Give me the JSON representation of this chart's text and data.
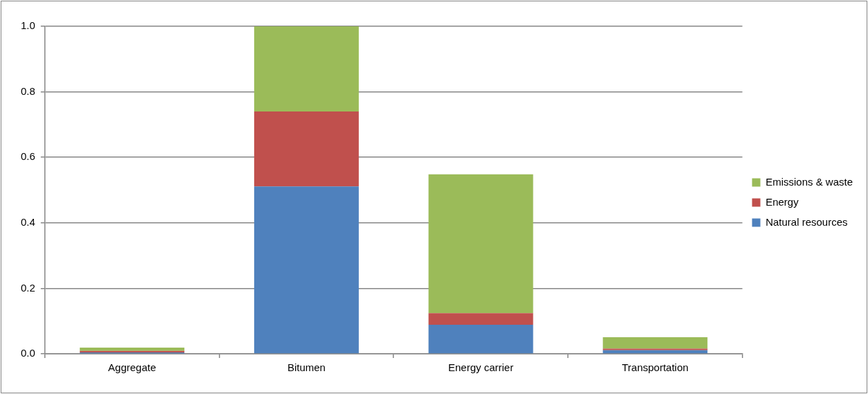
{
  "chart_data": {
    "type": "bar",
    "stacked": true,
    "categories": [
      "Aggregate",
      "Bitumen",
      "Energy carrier",
      "Transportation"
    ],
    "series": [
      {
        "name": "Natural resources",
        "color": "#4f81bd",
        "values": [
          0.004,
          0.511,
          0.089,
          0.011
        ]
      },
      {
        "name": "Energy",
        "color": "#c0504d",
        "values": [
          0.005,
          0.229,
          0.035,
          0.005
        ]
      },
      {
        "name": "Emissions & waste",
        "color": "#9bbb59",
        "values": [
          0.01,
          0.26,
          0.424,
          0.035
        ]
      }
    ],
    "ylim": [
      0,
      1.0
    ],
    "yticks": [
      {
        "value": 0,
        "label": "0.0"
      },
      {
        "value": 0.2,
        "label": "0.2"
      },
      {
        "value": 0.4,
        "label": "0.4"
      },
      {
        "value": 0.6,
        "label": "0.6"
      },
      {
        "value": 0.8,
        "label": "0.8"
      },
      {
        "value": 1.0,
        "label": "1.0"
      }
    ],
    "grid": "y",
    "legend": "right"
  }
}
